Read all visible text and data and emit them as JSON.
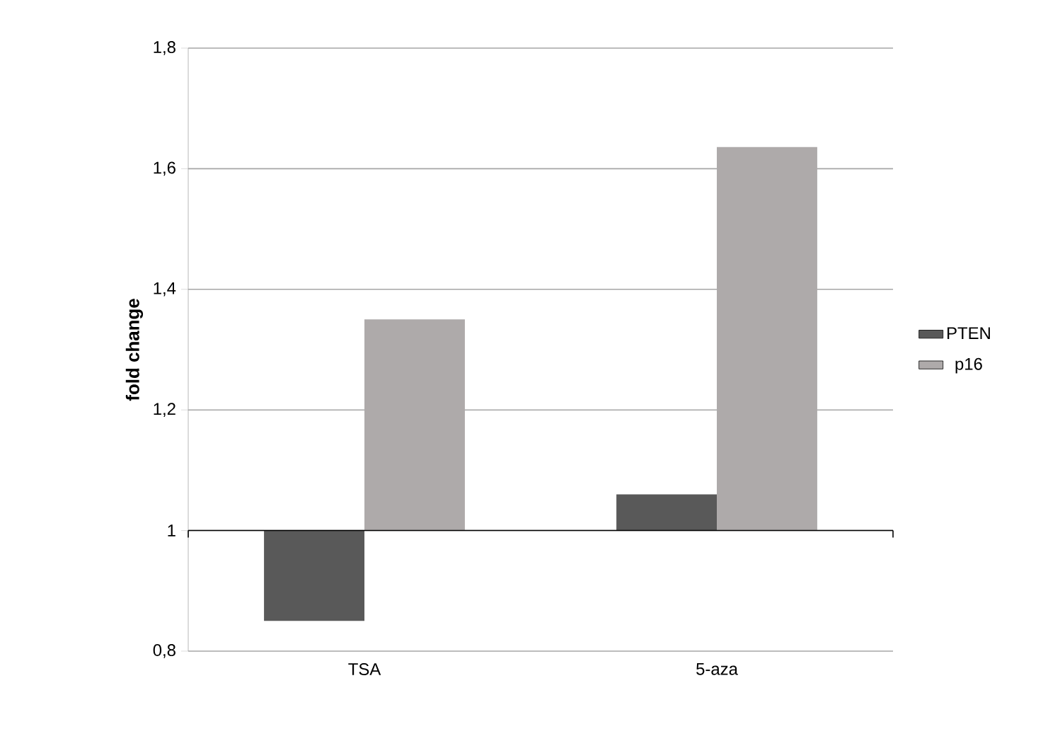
{
  "chart_data": {
    "type": "bar",
    "ylabel": "fold change",
    "categories": [
      "TSA",
      "5-aza"
    ],
    "series": [
      {
        "name": "PTEN",
        "color": "#595959",
        "base": [
          1,
          1
        ],
        "values": [
          -0.15,
          0.06
        ]
      },
      {
        "name": "p16",
        "color": "#aeaaaa",
        "base": [
          1,
          1
        ],
        "values": [
          0.35,
          0.636
        ]
      }
    ],
    "ylim": [
      0.8,
      1.8
    ],
    "yticks": [
      {
        "value": 0.8,
        "label": "0,8"
      },
      1,
      {
        "value": 1.2,
        "label": "1,2"
      },
      {
        "value": 1.4,
        "label": "1,4"
      },
      {
        "value": 1.6,
        "label": "1,6"
      },
      {
        "value": 1.8,
        "label": "1,8"
      }
    ],
    "ref_lines": [
      {
        "axis": "y",
        "value": 1,
        "color": "#000000"
      }
    ],
    "grid": "y",
    "legend": "right"
  }
}
